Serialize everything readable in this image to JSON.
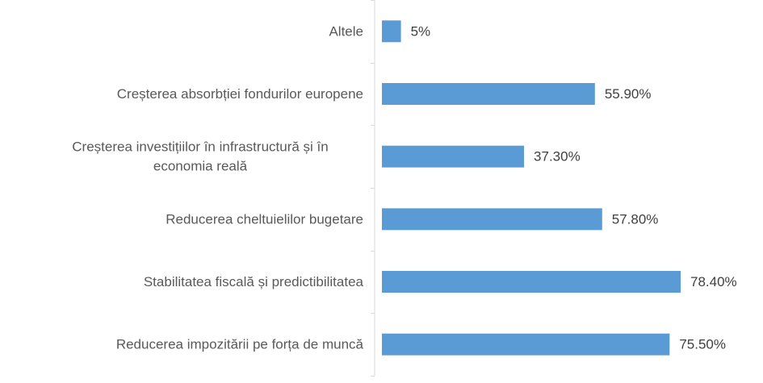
{
  "chart_data": {
    "type": "bar",
    "orientation": "horizontal",
    "categories": [
      [
        "Altele"
      ],
      [
        "Creșterea absorbției fondurilor europene"
      ],
      [
        "Creșterea investițiilor în infrastructură și în",
        "economia reală"
      ],
      [
        "Reducerea cheltuielilor bugetare"
      ],
      [
        "Stabilitatea  fiscală și predictibilitatea"
      ],
      [
        "Reducerea impozitării pe forța de muncă"
      ]
    ],
    "values": [
      5,
      55.9,
      37.3,
      57.8,
      78.4,
      75.5
    ],
    "value_labels": [
      "5%",
      "55.90%",
      "37.30%",
      "57.80%",
      "78.40%",
      "75.50%"
    ],
    "unit": "%",
    "bar_color": "#5b9bd5",
    "axis_color": "#d9d9d9",
    "grid": false,
    "legend": "none"
  }
}
